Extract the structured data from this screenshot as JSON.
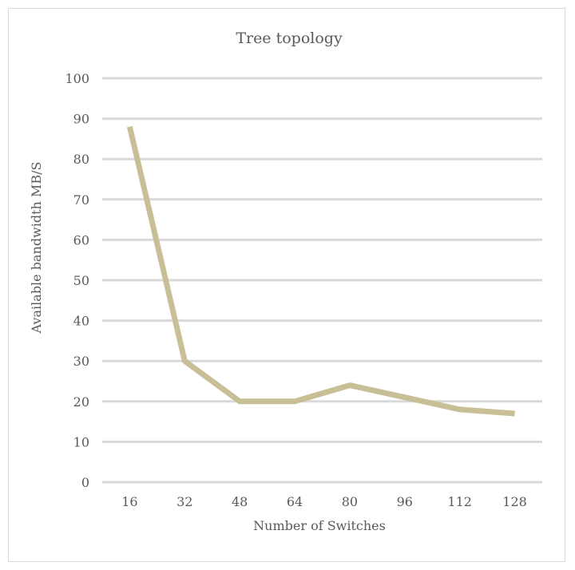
{
  "chart_data": {
    "type": "line",
    "title": "Tree topology",
    "xlabel": "Number of Switches",
    "ylabel": "Available  bandwidth MB/S",
    "categories": [
      "16",
      "32",
      "48",
      "64",
      "80",
      "96",
      "112",
      "128"
    ],
    "series": [
      {
        "values": [
          88,
          30,
          20,
          20,
          24,
          21,
          18,
          17
        ],
        "color": "#c9bf96"
      }
    ],
    "ylim": [
      0,
      100
    ],
    "yticks": [
      "0",
      "10",
      "20",
      "30",
      "40",
      "50",
      "60",
      "70",
      "80",
      "90",
      "100"
    ],
    "grid": true,
    "gridColor": "#d9d9d9",
    "legend": "none"
  }
}
